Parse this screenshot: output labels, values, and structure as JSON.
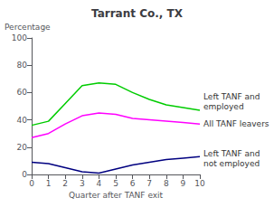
{
  "chart_data": {
    "type": "line",
    "title": "Tarrant Co., TX",
    "xlabel": "Quarter after TANF exit",
    "ylabel": "Percentage",
    "x": [
      0,
      1,
      2,
      3,
      4,
      5,
      6,
      7,
      8,
      9,
      10
    ],
    "xlim": [
      0,
      10
    ],
    "xticks": [
      0,
      1,
      2,
      3,
      4,
      5,
      6,
      7,
      8,
      9,
      10
    ],
    "ylim": [
      0,
      100
    ],
    "yticks": [
      0,
      20,
      40,
      60,
      80,
      100
    ],
    "series": [
      {
        "name": "Left TANF and\nemployed",
        "color": "#00cc00",
        "values": [
          36,
          39,
          52,
          65,
          67,
          66,
          60,
          55,
          51,
          49,
          47
        ]
      },
      {
        "name": "All TANF leavers",
        "color": "#ff00ff",
        "values": [
          27,
          30,
          37,
          43,
          45,
          44,
          41,
          40,
          39,
          38,
          37
        ]
      },
      {
        "name": "Left TANF and\nnot employed",
        "color": "#000080",
        "values": [
          9,
          8,
          5,
          2,
          1,
          4,
          7,
          9,
          11,
          12,
          13
        ]
      }
    ]
  }
}
